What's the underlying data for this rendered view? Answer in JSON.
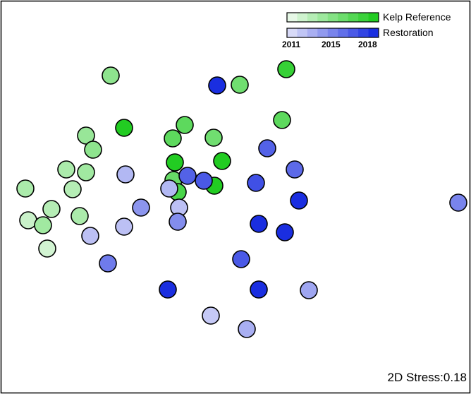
{
  "chart_data": {
    "type": "scatter",
    "title": "",
    "xlabel": "",
    "ylabel": "",
    "xlim": [
      0,
      668
    ],
    "ylim": [
      0,
      558
    ],
    "grid": false,
    "legend_position": "top-right",
    "annotation": "2D Stress:0.18",
    "colors": {
      "frame": "#000000",
      "marker_edge": "#000000",
      "kelp_2011": "#e6f8e6",
      "kelp_2018": "#22cc22",
      "restoration_2011": "#d8daf8",
      "restoration_2018": "#1a2ee0"
    },
    "legend": {
      "entries": [
        "Kelp Reference",
        "Restoration"
      ],
      "year_ticks": [
        "2011",
        "2015",
        "2018"
      ]
    },
    "series": [
      {
        "name": "Kelp Reference",
        "points": [
          {
            "x": 157,
            "y": 451,
            "level": 0.45
          },
          {
            "x": 406,
            "y": 460,
            "level": 0.9
          },
          {
            "x": 340,
            "y": 438,
            "level": 0.6
          },
          {
            "x": 176,
            "y": 377,
            "level": 1.0
          },
          {
            "x": 400,
            "y": 388,
            "level": 0.7
          },
          {
            "x": 262,
            "y": 381,
            "level": 0.7
          },
          {
            "x": 122,
            "y": 366,
            "level": 0.4
          },
          {
            "x": 245,
            "y": 362,
            "level": 0.7
          },
          {
            "x": 303,
            "y": 363,
            "level": 0.6
          },
          {
            "x": 132,
            "y": 346,
            "level": 0.45
          },
          {
            "x": 315,
            "y": 330,
            "level": 1.0
          },
          {
            "x": 248,
            "y": 328,
            "level": 1.0
          },
          {
            "x": 94,
            "y": 318,
            "level": 0.3
          },
          {
            "x": 122,
            "y": 314,
            "level": 0.35
          },
          {
            "x": 246,
            "y": 303,
            "level": 0.65
          },
          {
            "x": 304,
            "y": 295,
            "level": 1.0
          },
          {
            "x": 36,
            "y": 291,
            "level": 0.3
          },
          {
            "x": 103,
            "y": 290,
            "level": 0.25
          },
          {
            "x": 252,
            "y": 286,
            "level": 0.8
          },
          {
            "x": 73,
            "y": 262,
            "level": 0.25
          },
          {
            "x": 40,
            "y": 246,
            "level": 0.15
          },
          {
            "x": 113,
            "y": 252,
            "level": 0.3
          },
          {
            "x": 61,
            "y": 239,
            "level": 0.35
          },
          {
            "x": 67,
            "y": 206,
            "level": 0.1
          }
        ]
      },
      {
        "name": "Restoration",
        "points": [
          {
            "x": 308,
            "y": 437,
            "level": 1.0
          },
          {
            "x": 379,
            "y": 348,
            "level": 0.7
          },
          {
            "x": 418,
            "y": 318,
            "level": 0.65
          },
          {
            "x": 178,
            "y": 311,
            "level": 0.2
          },
          {
            "x": 266,
            "y": 309,
            "level": 0.7
          },
          {
            "x": 289,
            "y": 302,
            "level": 0.75
          },
          {
            "x": 363,
            "y": 299,
            "level": 0.8
          },
          {
            "x": 240,
            "y": 291,
            "level": 0.2
          },
          {
            "x": 424,
            "y": 274,
            "level": 1.0
          },
          {
            "x": 650,
            "y": 271,
            "level": 0.5
          },
          {
            "x": 254,
            "y": 264,
            "level": 0.15
          },
          {
            "x": 200,
            "y": 264,
            "level": 0.4
          },
          {
            "x": 252,
            "y": 244,
            "level": 0.45
          },
          {
            "x": 367,
            "y": 241,
            "level": 1.0
          },
          {
            "x": 404,
            "y": 229,
            "level": 1.0
          },
          {
            "x": 176,
            "y": 237,
            "level": 0.15
          },
          {
            "x": 128,
            "y": 224,
            "level": 0.15
          },
          {
            "x": 342,
            "y": 191,
            "level": 0.75
          },
          {
            "x": 153,
            "y": 185,
            "level": 0.55
          },
          {
            "x": 238,
            "y": 148,
            "level": 1.0
          },
          {
            "x": 367,
            "y": 148,
            "level": 1.0
          },
          {
            "x": 438,
            "y": 147,
            "level": 0.3
          },
          {
            "x": 299,
            "y": 111,
            "level": 0.1
          },
          {
            "x": 350,
            "y": 92,
            "level": 0.25
          }
        ]
      }
    ]
  }
}
